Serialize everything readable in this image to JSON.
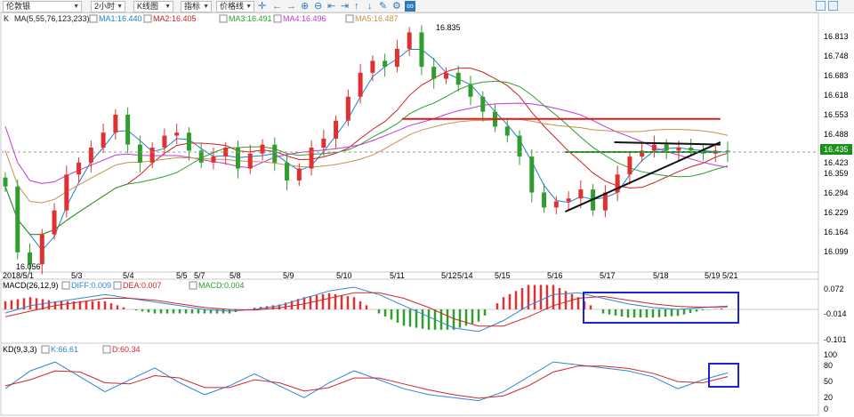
{
  "toolbar": {
    "symbol": "伦敦银",
    "period": "2小时",
    "chart_type": "K线图",
    "indicator_menu": "指标",
    "price_line_menu": "价格线",
    "icons": [
      "crosshair-icon",
      "left-arrow-icon",
      "right-arrow-icon",
      "zoom-in-icon",
      "zoom-out-icon",
      "move-left-icon",
      "move-right-icon",
      "up-icon",
      "down-icon",
      "pencil-icon",
      "settings-icon",
      "link-icon"
    ]
  },
  "colors": {
    "up": "#e03030",
    "down": "#2f9e2f",
    "ma1": "#1f7fd0",
    "ma2": "#d02020",
    "ma3": "#2ca02c",
    "ma4": "#c03ad0",
    "ma5": "#c89048",
    "diff": "#2f86d6",
    "dea": "#d02828",
    "k": "#2f86d6",
    "d": "#d02828"
  },
  "price_panel": {
    "label": "K",
    "ma_header": "MA(5,55,76,123,233)",
    "ma_values": [
      "MA1:16.440",
      "MA2:16.405",
      "MA3:16.491",
      "MA4:16.496",
      "MA5:16.487"
    ],
    "y_ticks": [
      "16.813",
      "16.748",
      "16.683",
      "16.618",
      "16.553",
      "16.488",
      "16.423",
      "16.359",
      "16.294",
      "16.229",
      "16.164",
      "16.099"
    ],
    "current_price": "16.435",
    "high_label": "16.835",
    "low_label": "16.056",
    "date_labels": [
      "2018/5/1",
      "5/3",
      "5/4",
      "5/5",
      "5/7",
      "5/8",
      "5/9",
      "5/10",
      "5/11",
      "5/12",
      "5/14",
      "5/15",
      "5/16",
      "5/17",
      "5/18",
      "5/19",
      "5/21"
    ]
  },
  "macd_panel": {
    "header": "MACD(26,12,9)",
    "values": [
      "DIFF:0.009",
      "DEA:0.007",
      "MACD:0.004"
    ],
    "y_ticks": [
      "0.072",
      "-0.014",
      "-0.101"
    ]
  },
  "kd_panel": {
    "header": "KD(9,3,3)",
    "values": [
      "K:66.61",
      "D:60.34"
    ],
    "y_ticks": [
      "100",
      "80",
      "50",
      "20",
      "0"
    ]
  },
  "chart_data": [
    {
      "type": "candlestick",
      "title": "伦敦银 2小时 K线图",
      "ylim": [
        16.04,
        16.86
      ],
      "categories": [
        "2018/5/1",
        "5/3",
        "5/4",
        "5/5",
        "5/7",
        "5/8",
        "5/9",
        "5/10",
        "5/11",
        "5/12",
        "5/14",
        "5/15",
        "5/16",
        "5/17",
        "5/18",
        "5/19",
        "5/21"
      ],
      "close_path": [
        16.32,
        16.1,
        16.06,
        16.16,
        16.24,
        16.36,
        16.4,
        16.45,
        16.5,
        16.56,
        16.46,
        16.4,
        16.45,
        16.49,
        16.5,
        16.44,
        16.4,
        16.42,
        16.45,
        16.38,
        16.43,
        16.46,
        16.4,
        16.34,
        16.38,
        16.45,
        16.48,
        16.54,
        16.62,
        16.7,
        16.74,
        16.72,
        16.78,
        16.835,
        16.72,
        16.68,
        16.7,
        16.66,
        16.62,
        16.57,
        16.52,
        16.49,
        16.42,
        16.3,
        16.25,
        16.27,
        16.28,
        16.31,
        16.24,
        16.3,
        16.36,
        16.42,
        16.44,
        16.46,
        16.44,
        16.45,
        16.44,
        16.43,
        16.44,
        16.435
      ],
      "annotations": {
        "high": 16.835,
        "low": 16.056,
        "last": 16.435
      },
      "trendlines": [
        {
          "name": "resistance",
          "color": "#d81e1e",
          "from": [
            16.546,
            0.49
          ],
          "to": [
            16.546,
            0.88
          ]
        },
        {
          "name": "range-top",
          "color": "#1a8f1a",
          "from": [
            16.435,
            0.69
          ],
          "to": [
            16.435,
            0.88
          ]
        },
        {
          "name": "rising-support",
          "color": "#111111",
          "from": [
            16.236,
            0.69
          ],
          "to": [
            16.468,
            0.88
          ]
        },
        {
          "name": "upper-slope",
          "color": "#111111",
          "from": [
            16.468,
            0.75
          ],
          "to": [
            16.46,
            0.88
          ]
        }
      ]
    },
    {
      "type": "bar",
      "title": "MACD(26,12,9)",
      "ylim": [
        -0.101,
        0.072
      ],
      "series": [
        {
          "name": "DIFF",
          "values": [
            -0.01,
            0.01,
            0.02,
            0.03,
            0.04,
            0.03,
            0.02,
            0.01,
            0.0,
            -0.005,
            0.0,
            0.01,
            0.03,
            0.05,
            0.06,
            0.04,
            0.01,
            -0.02,
            -0.05,
            -0.06,
            -0.03,
            0.01,
            0.04,
            0.045,
            0.03,
            0.015,
            0.005,
            0.0,
            0.005,
            0.009
          ]
        },
        {
          "name": "DEA",
          "values": [
            -0.02,
            -0.005,
            0.01,
            0.02,
            0.03,
            0.03,
            0.025,
            0.015,
            0.005,
            0.0,
            -0.002,
            0.004,
            0.015,
            0.03,
            0.045,
            0.045,
            0.03,
            0.005,
            -0.025,
            -0.045,
            -0.045,
            -0.02,
            0.01,
            0.03,
            0.035,
            0.025,
            0.015,
            0.008,
            0.006,
            0.007
          ]
        }
      ]
    },
    {
      "type": "line",
      "title": "KD(9,3,3)",
      "ylim": [
        0,
        100
      ],
      "series": [
        {
          "name": "K",
          "values": [
            40,
            70,
            85,
            60,
            35,
            55,
            75,
            50,
            30,
            45,
            65,
            45,
            25,
            50,
            70,
            55,
            40,
            30,
            25,
            20,
            35,
            60,
            85,
            80,
            75,
            70,
            60,
            40,
            55,
            66.61
          ]
        },
        {
          "name": "D",
          "values": [
            45,
            55,
            70,
            68,
            50,
            48,
            62,
            58,
            42,
            42,
            55,
            50,
            36,
            42,
            58,
            58,
            48,
            38,
            30,
            24,
            28,
            45,
            68,
            78,
            78,
            74,
            66,
            52,
            50,
            60.34
          ]
        }
      ]
    }
  ]
}
